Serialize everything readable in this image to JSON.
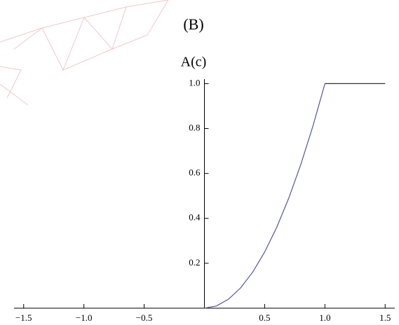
{
  "chart_data": {
    "type": "line",
    "title": "(B)",
    "y_label": "A(c)",
    "series": [
      {
        "color": "#5555a6",
        "x": [
          0,
          0.1,
          0.2,
          0.3,
          0.4,
          0.5,
          0.6,
          0.7,
          0.8,
          0.9,
          1.0
        ],
        "values": [
          0,
          0.01,
          0.04,
          0.09,
          0.16,
          0.25,
          0.36,
          0.49,
          0.64,
          0.81,
          1.0
        ]
      },
      {
        "color": "#333333",
        "x": [
          1.0,
          1.5
        ],
        "values": [
          1.0,
          1.0
        ]
      }
    ],
    "xlim": [
      -1.58,
      1.58
    ],
    "ylim": [
      0,
      1.02
    ],
    "xticks": [
      {
        "value": -1.5,
        "label": "−1.5"
      },
      {
        "value": -1.0,
        "label": "−1.0"
      },
      {
        "value": -0.5,
        "label": "−0.5"
      },
      0.5,
      {
        "value": 1.0,
        "label": "1.0"
      },
      1.5
    ],
    "yticks": [
      0.2,
      0.4,
      0.6,
      0.8,
      {
        "value": 1.0,
        "label": "1.0"
      }
    ]
  }
}
